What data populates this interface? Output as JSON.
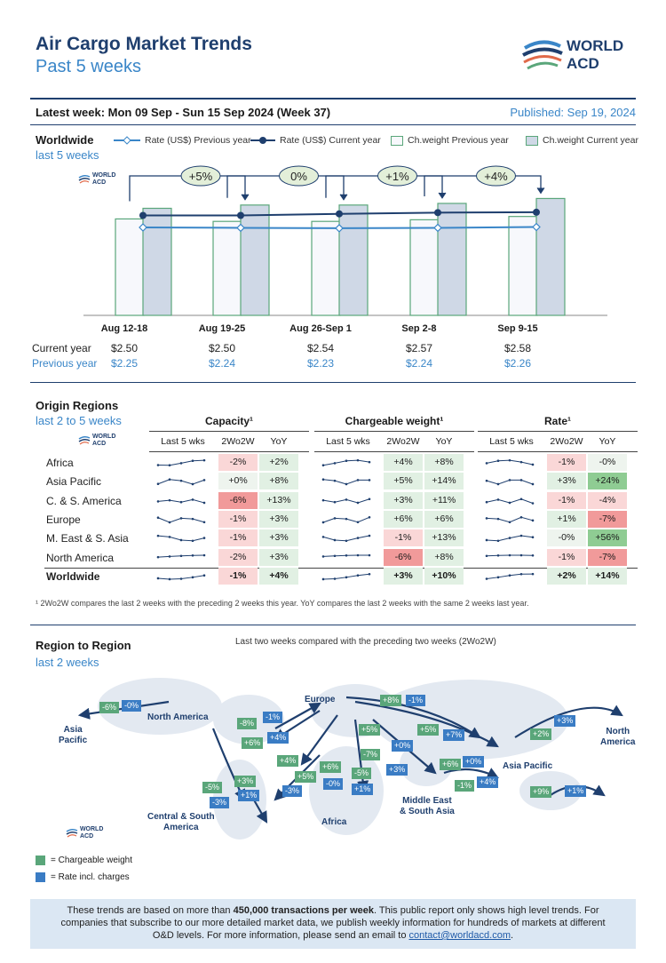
{
  "header": {
    "title": "Air Cargo Market Trends",
    "subtitle": "Past 5 weeks",
    "logo_text": "WORLD\nACD",
    "latest_week": "Latest week:  Mon 09 Sep - Sun 15 Sep 2024 (Week 37)",
    "published": "Published: Sep 19, 2024"
  },
  "worldwide": {
    "title": "Worldwide",
    "subtitle": "last 5 weeks",
    "legend": [
      "Rate (US$) Previous year",
      "Rate (US$) Current year",
      "Ch.weight Previous year",
      "Ch.weight Current year"
    ],
    "logo_text": "WORLD ACD",
    "row_current": "Current year",
    "row_previous": "Previous year"
  },
  "chart_data": {
    "type": "bar",
    "categories": [
      "Aug 12-18",
      "Aug 19-25",
      "Aug 26-Sep 1",
      "Sep 2-8",
      "Sep 9-15"
    ],
    "series": [
      {
        "name": "Ch.weight Previous year",
        "values": [
          118,
          115,
          115,
          117,
          121
        ]
      },
      {
        "name": "Ch.weight Current year",
        "values": [
          131,
          135,
          135,
          137,
          143
        ]
      },
      {
        "name": "Rate (US$) Current year",
        "values": [
          2.5,
          2.5,
          2.54,
          2.57,
          2.58
        ]
      },
      {
        "name": "Rate (US$) Previous year",
        "values": [
          2.25,
          2.24,
          2.23,
          2.24,
          2.26
        ]
      }
    ],
    "changes": [
      "+5%",
      "0%",
      "+1%",
      "+4%"
    ],
    "current_labels": [
      "$2.50",
      "$2.50",
      "$2.54",
      "$2.57",
      "$2.58"
    ],
    "previous_labels": [
      "$2.25",
      "$2.24",
      "$2.23",
      "$2.24",
      "$2.26"
    ],
    "colors": {
      "prev_bar": "#f7f8fc",
      "curr_bar": "#cfd8e6",
      "bar_border": "#5aa67a",
      "curr_line": "#1f3f6e",
      "prev_line": "#3a86c8"
    }
  },
  "origin": {
    "title": "Origin Regions",
    "subtitle": "last 2 to 5 weeks",
    "logo_text": "WORLD ACD",
    "groups": [
      "Capacity¹",
      "Chargeable weight¹",
      "Rate¹"
    ],
    "cols": [
      "Last 5 wks",
      "2Wo2W",
      "YoY"
    ],
    "regions": [
      "Africa",
      "Asia Pacific",
      "C. & S. America",
      "Europe",
      "M. East & S. Asia",
      "North America",
      "Worldwide"
    ],
    "capacity": [
      [
        "-2%",
        "+2%"
      ],
      [
        "+0%",
        "+8%"
      ],
      [
        "-6%",
        "+13%"
      ],
      [
        "-1%",
        "+3%"
      ],
      [
        "-1%",
        "+3%"
      ],
      [
        "-2%",
        "+3%"
      ],
      [
        "-1%",
        "+4%"
      ]
    ],
    "weight": [
      [
        "+4%",
        "+8%"
      ],
      [
        "+5%",
        "+14%"
      ],
      [
        "+3%",
        "+11%"
      ],
      [
        "+6%",
        "+6%"
      ],
      [
        "-1%",
        "+13%"
      ],
      [
        "-6%",
        "+8%"
      ],
      [
        "+3%",
        "+10%"
      ]
    ],
    "rate": [
      [
        "-1%",
        "-0%"
      ],
      [
        "+3%",
        "+24%"
      ],
      [
        "-1%",
        "-4%"
      ],
      [
        "+1%",
        "-7%"
      ],
      [
        "-0%",
        "+56%"
      ],
      [
        "-1%",
        "-7%"
      ],
      [
        "+2%",
        "+14%"
      ]
    ],
    "footnote": "¹ 2Wo2W compares the last 2 weeks with the preceding 2 weeks this year. YoY compares the last 2 weeks with the same 2 weeks last year."
  },
  "region": {
    "title": "Region to Region",
    "subtitle": "last 2 weeks",
    "caption": "Last two weeks compared with the preceding two weeks (2Wo2W)",
    "labels": {
      "asia_left": "Asia\nPacific",
      "na_left": "North America",
      "europe": "Europe",
      "na_right": "North\nAmerica",
      "asia_pac": "Asia Pacific",
      "csa": "Central & South\nAmerica",
      "africa": "Africa",
      "mesa": "Middle East\n& South Asia"
    },
    "legend_cw": "= Chargeable weight",
    "legend_rate": "= Rate incl. charges",
    "logo_text": "WORLD ACD",
    "badges": [
      [
        "-6%",
        "g",
        112,
        790
      ],
      [
        "-0%",
        "b",
        137,
        788
      ],
      [
        "-8%",
        "g",
        267,
        808
      ],
      [
        "-1%",
        "b",
        296,
        801
      ],
      [
        "+6%",
        "g",
        272,
        830
      ],
      [
        "+4%",
        "b",
        301,
        824
      ],
      [
        "+8%",
        "g",
        428,
        782
      ],
      [
        "-1%",
        "b",
        457,
        782
      ],
      [
        "+5%",
        "g",
        404,
        815
      ],
      [
        "+0%",
        "b",
        441,
        833
      ],
      [
        "+5%",
        "g",
        470,
        815
      ],
      [
        "+7%",
        "b",
        499,
        821
      ],
      [
        "-7%",
        "g",
        406,
        843
      ],
      [
        "+3%",
        "b",
        435,
        860
      ],
      [
        "+4%",
        "g",
        312,
        850
      ],
      [
        "+5%",
        "g",
        332,
        868
      ],
      [
        "-3%",
        "b",
        318,
        884
      ],
      [
        "+6%",
        "g",
        360,
        857
      ],
      [
        "-0%",
        "b",
        364,
        876
      ],
      [
        "-5%",
        "g",
        396,
        864
      ],
      [
        "+1%",
        "b",
        396,
        882
      ],
      [
        "+3%",
        "g",
        264,
        873
      ],
      [
        "+1%",
        "b",
        268,
        889
      ],
      [
        "-5%",
        "g",
        228,
        880
      ],
      [
        "-3%",
        "b",
        236,
        897
      ],
      [
        "+6%",
        "g",
        495,
        854
      ],
      [
        "+0%",
        "b",
        521,
        851
      ],
      [
        "-1%",
        "g",
        512,
        878
      ],
      [
        "+4%",
        "b",
        537,
        874
      ],
      [
        "+2%",
        "g",
        597,
        820
      ],
      [
        "+3%",
        "b",
        624,
        805
      ],
      [
        "+9%",
        "g",
        597,
        885
      ],
      [
        "+1%",
        "b",
        636,
        884
      ]
    ]
  },
  "footer": {
    "text1": "These trends are based on more than ",
    "bold": "450,000 transactions per week",
    "text2": ". This public report only shows high level trends. For companies that subscribe to our more detailed market data, we publish weekly information for hundreds of markets at different O&D levels. For more information, please send an email to ",
    "email": "contact@worldacd.com",
    "text3": "."
  }
}
